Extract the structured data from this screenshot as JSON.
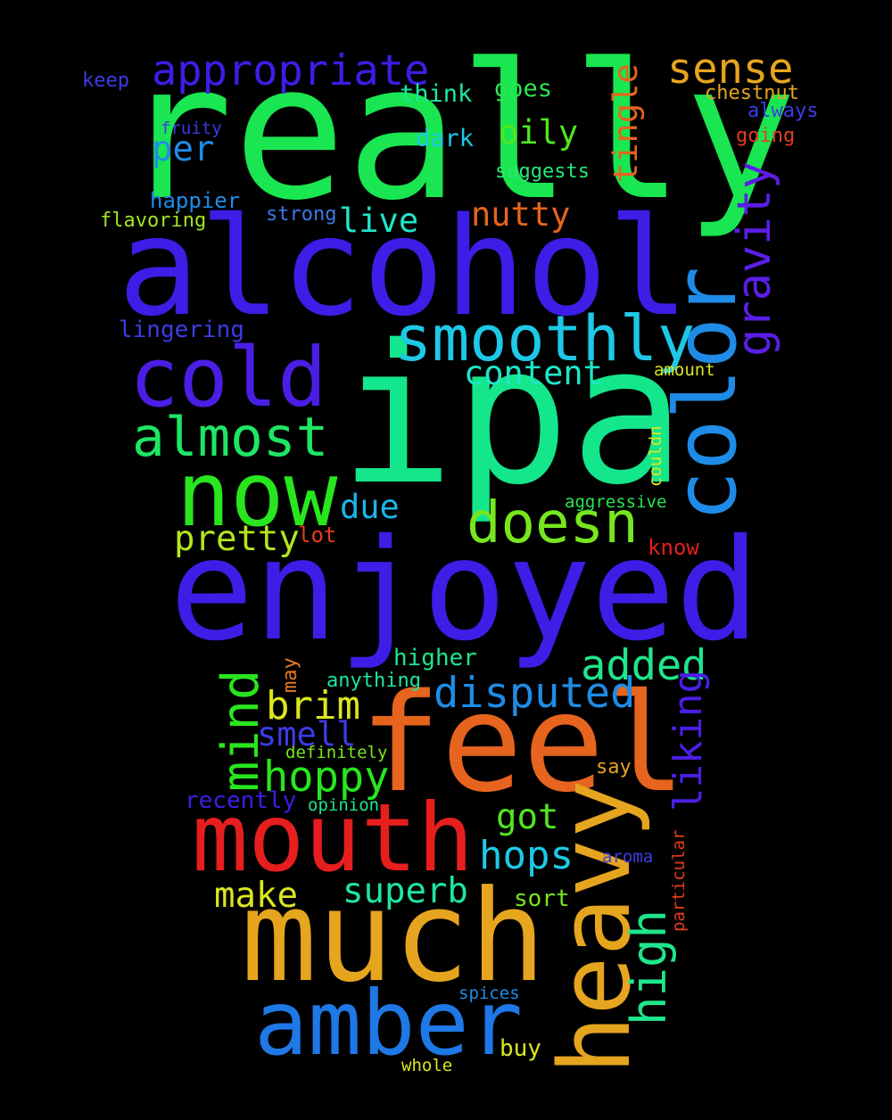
{
  "words": {
    "really": "really",
    "alcohol": "alcohol",
    "ipa": "ipa",
    "enjoyed": "enjoyed",
    "feel": "feel",
    "much": "much",
    "mouth": "mouth",
    "amber": "amber",
    "heavy": "heavy",
    "color": "color",
    "now": "now",
    "cold": "cold",
    "smoothly": "smoothly",
    "doesn": "doesn",
    "almost": "almost",
    "mind": "mind",
    "gravity": "gravity",
    "appropriate": "appropriate",
    "sense": "sense",
    "disputed": "disputed",
    "added": "added",
    "high": "high",
    "liking": "liking",
    "hoppy": "hoppy",
    "brim": "brim",
    "hops": "hops",
    "superb": "superb",
    "got": "got",
    "make": "make",
    "pretty": "pretty",
    "content": "content",
    "smell": "smell",
    "oily": "oily",
    "per": "per",
    "nutty": "nutty",
    "live": "live",
    "tingle": "tingle",
    "due": "due",
    "think": "think",
    "goes": "goes",
    "dark": "dark",
    "chestnut": "chestnut",
    "keep": "keep",
    "always": "always",
    "going": "going",
    "fruity": "fruity",
    "suggests": "suggests",
    "happier": "happier",
    "strong": "strong",
    "flavoring": "flavoring",
    "lingering": "lingering",
    "amount": "amount",
    "couldn": "couldn",
    "aggressive": "aggressive",
    "lot": "lot",
    "know": "know",
    "higher": "higher",
    "may": "may",
    "anything": "anything",
    "definitely": "definitely",
    "say": "say",
    "recently": "recently",
    "opinion": "opinion",
    "particular": "particular",
    "aroma": "aroma",
    "sort": "sort",
    "spices": "spices",
    "buy": "buy",
    "whole": "whole"
  },
  "colors": {
    "really": "#19e650",
    "alcohol": "#3c1ee6",
    "ipa": "#14e68c",
    "enjoyed": "#3c1ee6",
    "feel": "#e6641e",
    "much": "#e6a51e",
    "mouth": "#e61e1e",
    "amber": "#1e78e6",
    "heavy": "#e6a51e",
    "color": "#1e8ce6",
    "now": "#28e61e",
    "cold": "#4b1ee6",
    "smoothly": "#1ec8e6",
    "doesn": "#78e61e",
    "almost": "#1ee664",
    "mind": "#28e61e",
    "gravity": "#5a1ee6",
    "appropriate": "#3c1ee6",
    "sense": "#e6a51e",
    "disputed": "#1e8ce6",
    "added": "#1ee68c",
    "high": "#1ee68c",
    "liking": "#4b1ee6",
    "hoppy": "#28e61e",
    "brim": "#dce61e",
    "hops": "#1ec8e6",
    "superb": "#1ee6a0",
    "got": "#50e61e",
    "make": "#dce61e",
    "pretty": "#b4e61e",
    "content": "#1ee6c8",
    "smell": "#3c3ce6",
    "oily": "#50e61e",
    "per": "#1e8ce6",
    "nutty": "#e6641e",
    "live": "#1ee6c8",
    "tingle": "#e6641e",
    "due": "#1eb4e6",
    "think": "#1ee6a0",
    "goes": "#28e650",
    "dark": "#1ec8e6",
    "chestnut": "#e6a51e",
    "keep": "#3c3ce6",
    "always": "#3c3ce6",
    "going": "#e63c1e",
    "fruity": "#3c3ce6",
    "suggests": "#28e678",
    "happier": "#1e8ce6",
    "strong": "#3c78e6",
    "flavoring": "#a0e61e",
    "lingering": "#3c3ce6",
    "amount": "#dce61e",
    "couldn": "#dce61e",
    "aggressive": "#28e650",
    "lot": "#e63c1e",
    "know": "#e61e1e",
    "higher": "#1ee68c",
    "may": "#e6781e",
    "anything": "#1ee6a0",
    "definitely": "#78e61e",
    "say": "#e6a51e",
    "recently": "#3c1ee6",
    "opinion": "#1ee68c",
    "particular": "#e63c1e",
    "aroma": "#3c3ce6",
    "sort": "#78e61e",
    "spices": "#1e8ce6",
    "buy": "#dce61e",
    "whole": "#dce61e"
  }
}
